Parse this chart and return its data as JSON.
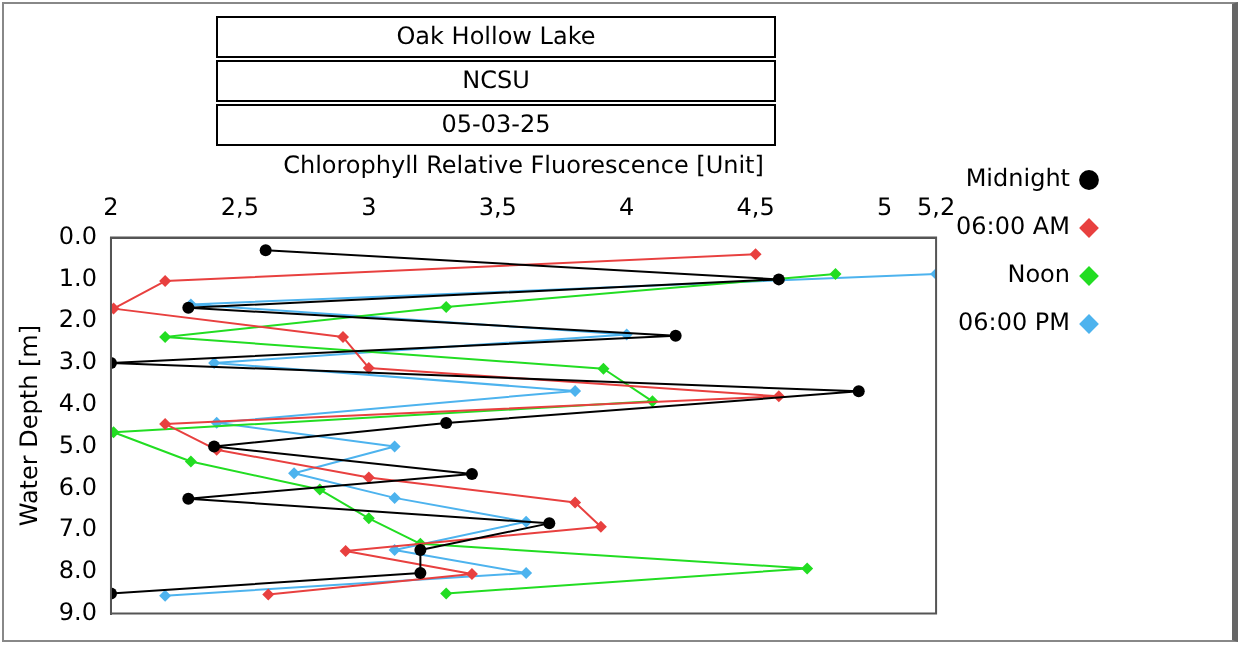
{
  "chart_data": {
    "type": "line",
    "title": "Oak Hollow Lake",
    "subtitle": "NCSU",
    "annotations": [
      "05-03-25"
    ],
    "xlabel": "Chlorophyll Relative Fluorescence [Unit]",
    "ylabel": "Water Depth [m]",
    "xlim": [
      2,
      5.2
    ],
    "xticks": [
      2,
      {
        "value": 2.5,
        "label": "2,5"
      },
      3,
      {
        "value": 3.5,
        "label": "3,5"
      },
      4,
      {
        "value": 4.5,
        "label": "4,5"
      },
      5,
      {
        "value": 5.2,
        "label": "5,2"
      }
    ],
    "ylim": [
      9,
      0
    ],
    "yticks": [
      {
        "value": 0,
        "label": "0.0"
      },
      {
        "value": 1,
        "label": "1.0"
      },
      {
        "value": 2,
        "label": "2.0"
      },
      {
        "value": 3,
        "label": "3.0"
      },
      {
        "value": 4,
        "label": "4.0"
      },
      {
        "value": 5,
        "label": "5.0"
      },
      {
        "value": 6,
        "label": "6.0"
      },
      {
        "value": 7,
        "label": "7.0"
      },
      {
        "value": 8,
        "label": "8.0"
      },
      {
        "value": 9,
        "label": "9.0"
      }
    ],
    "legend": "top right",
    "line_style": "solid",
    "series": [
      {
        "name": "Midnight",
        "color": "#000000",
        "marker": "circle",
        "x": [
          2.6,
          4.59,
          2.3,
          4.19,
          2.0,
          4.9,
          3.3,
          2.4,
          3.4,
          2.3,
          3.7,
          3.2,
          3.2,
          2.0
        ],
        "values": [
          0.3,
          1.0,
          1.68,
          2.35,
          3.0,
          3.68,
          4.44,
          5.0,
          5.66,
          6.25,
          6.84,
          7.48,
          8.03,
          8.52
        ]
      },
      {
        "name": "06:00 AM",
        "color": "#e8403f",
        "marker": "diamond",
        "x": [
          4.5,
          2.21,
          2.01,
          2.9,
          3.0,
          4.59,
          2.21,
          2.41,
          3.0,
          3.8,
          3.9,
          2.91,
          3.4,
          2.61
        ],
        "values": [
          0.4,
          1.04,
          1.7,
          2.38,
          3.12,
          3.8,
          4.46,
          5.08,
          5.74,
          6.34,
          6.92,
          7.5,
          8.05,
          8.54
        ]
      },
      {
        "name": "Noon",
        "color": "#22dd22",
        "marker": "diamond",
        "x": [
          4.81,
          3.3,
          2.21,
          3.91,
          4.1,
          2.01,
          2.31,
          2.81,
          3.0,
          3.2,
          4.7,
          3.3
        ],
        "values": [
          0.87,
          1.66,
          2.38,
          3.14,
          3.92,
          4.66,
          5.36,
          6.03,
          6.72,
          7.33,
          7.92,
          8.52
        ]
      },
      {
        "name": "06:00 PM",
        "color": "#4db3ee",
        "marker": "diamond",
        "x": [
          5.2,
          2.31,
          4.0,
          2.4,
          3.8,
          2.41,
          3.1,
          2.71,
          3.1,
          3.61,
          3.1,
          3.61,
          2.21
        ],
        "values": [
          0.87,
          1.6,
          2.32,
          3.0,
          3.67,
          4.43,
          5.0,
          5.64,
          6.23,
          6.8,
          7.48,
          8.03,
          8.57
        ]
      }
    ]
  }
}
